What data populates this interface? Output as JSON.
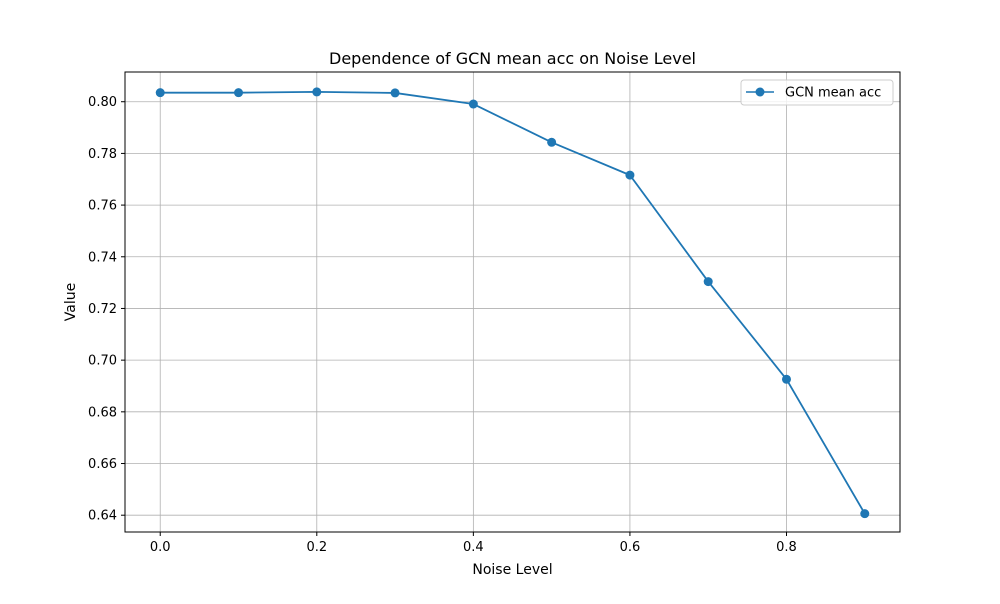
{
  "chart_data": {
    "type": "line",
    "title": "Dependence of GCN mean acc on Noise Level",
    "xlabel": "Noise Level",
    "ylabel": "Value",
    "xlim": [
      -0.045,
      0.945
    ],
    "ylim": [
      0.6335,
      0.8115
    ],
    "xticks": [
      0.0,
      0.2,
      0.4,
      0.6,
      0.8
    ],
    "xtick_labels": [
      "0.0",
      "0.2",
      "0.4",
      "0.6",
      "0.8"
    ],
    "yticks": [
      0.64,
      0.66,
      0.68,
      0.7,
      0.72,
      0.74,
      0.76,
      0.78,
      0.8
    ],
    "ytick_labels": [
      "0.64",
      "0.66",
      "0.68",
      "0.70",
      "0.72",
      "0.74",
      "0.76",
      "0.78",
      "0.80"
    ],
    "grid": true,
    "legend_position": "top-right",
    "series": [
      {
        "name": "GCN mean acc",
        "color": "#1f77b4",
        "marker": "circle",
        "x": [
          0.0,
          0.1,
          0.2,
          0.3,
          0.4,
          0.5,
          0.6,
          0.7,
          0.8,
          0.9
        ],
        "y": [
          0.8035,
          0.8035,
          0.8038,
          0.8034,
          0.7991,
          0.7843,
          0.7716,
          0.7304,
          0.6926,
          0.6406
        ]
      }
    ]
  }
}
